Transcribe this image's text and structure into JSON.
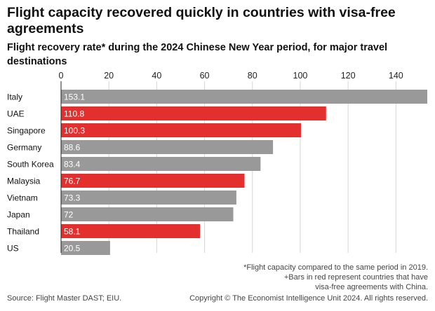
{
  "title": "Flight capacity recovered quickly in countries with visa-free agreements",
  "subtitle": "Flight recovery rate* during the 2024 Chinese New Year period, for major travel destinations",
  "footnote": [
    "*Flight capacity compared to the same period in 2019.",
    "+Bars in red represent countries that have",
    "visa-free agreements with China."
  ],
  "source": "Source: Flight Master DAST; EIU.",
  "copyright": "Copyright © The Economist Intelligence Unit 2024. All rights reserved.",
  "colors": {
    "highlight": "#e3302f",
    "default": "#999999",
    "text": "#111111"
  },
  "chart_data": {
    "type": "bar",
    "orientation": "horizontal",
    "categories": [
      "Italy",
      "UAE",
      "Singapore",
      "Germany",
      "South Korea",
      "Malaysia",
      "Vietnam",
      "Japan",
      "Thailand",
      "US"
    ],
    "values": [
      153.1,
      110.8,
      100.3,
      88.6,
      83.4,
      76.7,
      73.3,
      72,
      58.1,
      20.5
    ],
    "value_labels": [
      "153.1",
      "110.8",
      "100.3",
      "88.6",
      "83.4",
      "76.7",
      "73.3",
      "72",
      "58.1",
      "20.5"
    ],
    "visa_free": [
      false,
      true,
      true,
      false,
      false,
      true,
      false,
      false,
      true,
      false
    ],
    "xticks": [
      0,
      20,
      40,
      60,
      80,
      100,
      120,
      140
    ],
    "xlim": [
      0,
      153.1
    ],
    "xlabel": "",
    "ylabel": "",
    "grid": true,
    "axis_position": "top"
  }
}
